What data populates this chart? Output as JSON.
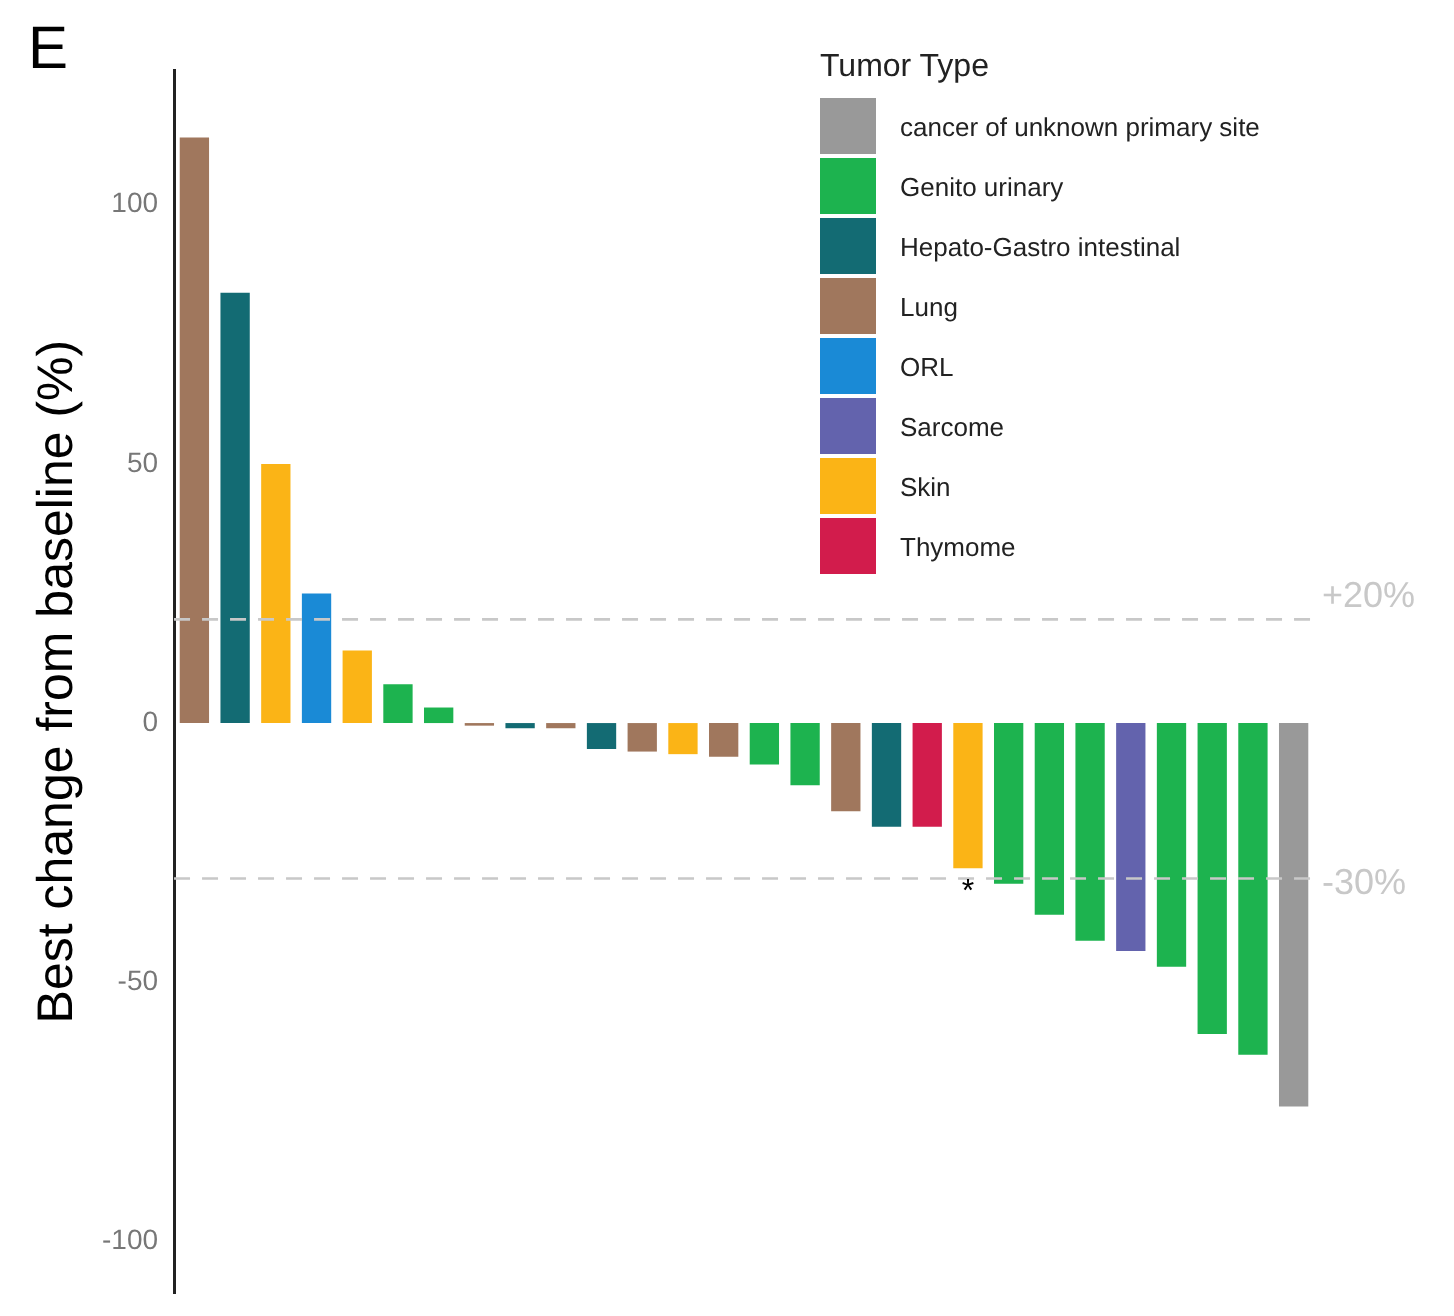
{
  "chart_data": {
    "type": "bar",
    "ylabel": "Best change from baseline (%)",
    "legend_title": "Tumor Type",
    "annotations": [
      "E"
    ],
    "categories": [
      null,
      null,
      null,
      null,
      null,
      null,
      null,
      null,
      null,
      null,
      null,
      null,
      null,
      null,
      null,
      null,
      null,
      null,
      null,
      null,
      null,
      null,
      null,
      null,
      null,
      null,
      null,
      null
    ],
    "series": [
      {
        "name": "cancer of unknown primary site",
        "color": "#999999",
        "values": [
          null,
          null,
          null,
          null,
          null,
          null,
          null,
          null,
          null,
          null,
          null,
          null,
          null,
          null,
          null,
          null,
          null,
          null,
          null,
          null,
          null,
          null,
          null,
          null,
          null,
          null,
          null,
          -74
        ]
      },
      {
        "name": "Genito urinary",
        "color": "#1db34f",
        "values": [
          null,
          null,
          null,
          null,
          null,
          7.5,
          3,
          null,
          null,
          null,
          null,
          null,
          null,
          null,
          -8,
          -12,
          null,
          null,
          null,
          null,
          -31,
          -37,
          -42,
          null,
          -47,
          -60,
          -64,
          null
        ]
      },
      {
        "name": "Hepato-Gastro intestinal",
        "color": "#136b73",
        "values": [
          null,
          83,
          null,
          null,
          null,
          null,
          null,
          null,
          -1,
          null,
          -5,
          null,
          null,
          null,
          null,
          null,
          null,
          -20,
          null,
          null,
          null,
          null,
          null,
          null,
          null,
          null,
          null,
          null
        ]
      },
      {
        "name": "Lung",
        "color": "#a0775d",
        "values": [
          113,
          null,
          null,
          null,
          null,
          null,
          null,
          -0.5,
          null,
          -1,
          null,
          -5.5,
          null,
          -6.5,
          null,
          null,
          -17,
          null,
          null,
          null,
          null,
          null,
          null,
          null,
          null,
          null,
          null,
          null
        ]
      },
      {
        "name": "ORL",
        "color": "#1a8ad6",
        "values": [
          null,
          null,
          null,
          25,
          null,
          null,
          null,
          null,
          null,
          null,
          null,
          null,
          null,
          null,
          null,
          null,
          null,
          null,
          null,
          null,
          null,
          null,
          null,
          null,
          null,
          null,
          null,
          null
        ]
      },
      {
        "name": "Sarcome",
        "color": "#6363ad",
        "values": [
          null,
          null,
          null,
          null,
          null,
          null,
          null,
          null,
          null,
          null,
          null,
          null,
          null,
          null,
          null,
          null,
          null,
          null,
          null,
          null,
          null,
          null,
          null,
          -44,
          null,
          null,
          null,
          null
        ]
      },
      {
        "name": "Skin",
        "color": "#fbb416",
        "values": [
          null,
          null,
          50,
          null,
          14,
          null,
          null,
          null,
          null,
          null,
          null,
          null,
          -6,
          null,
          null,
          null,
          null,
          null,
          null,
          -28,
          null,
          null,
          null,
          null,
          null,
          null,
          null,
          null
        ],
        "value_labels": [
          null,
          null,
          null,
          null,
          null,
          null,
          null,
          null,
          null,
          null,
          null,
          null,
          null,
          null,
          null,
          null,
          null,
          null,
          null,
          "*",
          null,
          null,
          null,
          null,
          null,
          null,
          null,
          null
        ]
      },
      {
        "name": "Thymome",
        "color": "#d21c4c",
        "values": [
          null,
          null,
          null,
          null,
          null,
          null,
          null,
          null,
          null,
          null,
          null,
          null,
          null,
          null,
          null,
          null,
          null,
          null,
          -20,
          null,
          null,
          null,
          null,
          null,
          null,
          null,
          null,
          null
        ]
      }
    ],
    "ylim": [
      -110,
      126
    ],
    "yticks": [
      -100,
      -50,
      0,
      50,
      100
    ],
    "ref_lines": [
      {
        "axis": "y",
        "value": 20,
        "label": "+20%",
        "color": "#c8c8c8",
        "line_style": "dashed"
      },
      {
        "axis": "y",
        "value": -30,
        "label": "-30%",
        "color": "#c8c8c8",
        "line_style": "dashed"
      }
    ],
    "grid": false,
    "legend": "top right",
    "tick_labels": "y"
  }
}
